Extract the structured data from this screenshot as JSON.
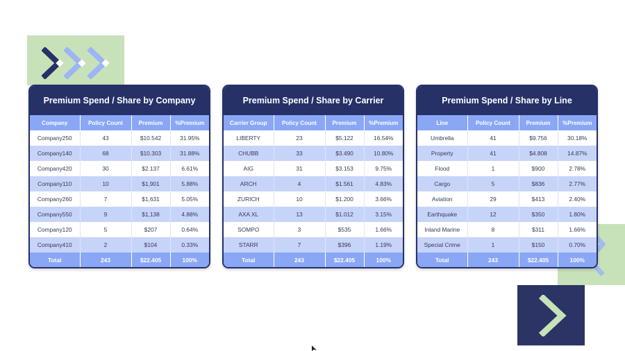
{
  "tables": [
    {
      "title": "Premium Spend / Share by Company",
      "headers": [
        "Company",
        "Policy Count",
        "Premium",
        "%Premium"
      ],
      "rows": [
        [
          "Company250",
          "43",
          "$10.542",
          "31.95%"
        ],
        [
          "Company140",
          "68",
          "$10.303",
          "31.88%"
        ],
        [
          "Company420",
          "30",
          "$2.137",
          "6.61%"
        ],
        [
          "Company110",
          "10",
          "$1,901",
          "5.88%"
        ],
        [
          "Company260",
          "7",
          "$1,631",
          "5.05%"
        ],
        [
          "Company550",
          "9",
          "$1,138",
          "4.88%"
        ],
        [
          "Company120",
          "5",
          "$207",
          "0.64%"
        ],
        [
          "Company410",
          "2",
          "$104",
          "0.33%"
        ]
      ],
      "total": [
        "Total",
        "243",
        "$22.405",
        "100%"
      ]
    },
    {
      "title": "Premium Spend / Share by Carrier",
      "headers": [
        "Carrier Group",
        "Policy Count",
        "Premium",
        "%Premium"
      ],
      "rows": [
        [
          "LIBERTY",
          "23",
          "$5.122",
          "16.54%"
        ],
        [
          "CHUBB",
          "33",
          "$3.490",
          "10.80%"
        ],
        [
          "AIG",
          "31",
          "$3.153",
          "9.75%"
        ],
        [
          "ARCH",
          "4",
          "$1.561",
          "4.83%"
        ],
        [
          "ZURICH",
          "10",
          "$1.200",
          "3.66%"
        ],
        [
          "AXA XL",
          "13",
          "$1.012",
          "3.15%"
        ],
        [
          "SOMPO",
          "3",
          "$535",
          "1.66%"
        ],
        [
          "STARR",
          "7",
          "$396",
          "1.19%"
        ]
      ],
      "total": [
        "Total",
        "243",
        "$22.405",
        "100%"
      ]
    },
    {
      "title": "Premium Spend / Share by Line",
      "headers": [
        "Line",
        "Policy Count",
        "Premium",
        "%Premium"
      ],
      "rows": [
        [
          "Umbrella",
          "41",
          "$9.756",
          "30.18%"
        ],
        [
          "Property",
          "41",
          "$4.808",
          "14.87%"
        ],
        [
          "Flood",
          "1",
          "$900",
          "2.78%"
        ],
        [
          "Cargo",
          "5",
          "$836",
          "2.77%"
        ],
        [
          "Aviation",
          "29",
          "$413",
          "2.40%"
        ],
        [
          "Earthquake",
          "12",
          "$350",
          "1.80%"
        ],
        [
          "Inland Marine",
          "8",
          "$311",
          "1.66%"
        ],
        [
          "Special Crime",
          "1",
          "$150",
          "0.70%"
        ]
      ],
      "total": [
        "Total",
        "243",
        "$22.405",
        "100%"
      ]
    }
  ],
  "colors": {
    "navy": "#263168",
    "header_blue": "#8aa7f5",
    "row_alt": "#c7d4fa",
    "deco_green": "#c7e2b8",
    "chevron_light_blue": "#9db4f7"
  },
  "icons": [
    "chevron-right-icon",
    "cursor-icon"
  ]
}
